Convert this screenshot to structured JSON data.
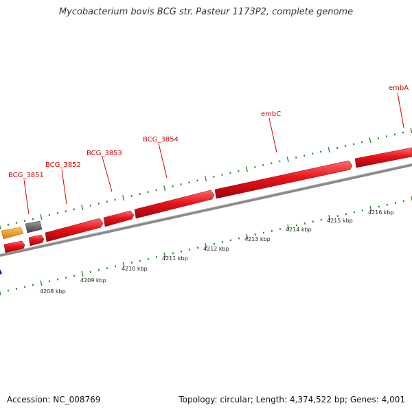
{
  "title": "Mycobacterium bovis BCG str. Pasteur 1173P2, complete genome",
  "footer": {
    "accession": "Accession: NC_008769",
    "summary": "Topology: circular; Length: 4,374,522 bp; Genes: 4,001"
  },
  "colors": {
    "gene": "#e8141a",
    "gene_alt_orange": "#f39a1d",
    "gene_alt_gray": "#666666",
    "backbone": "#8a8a8a",
    "tick": "#2e8b2e",
    "label": "#d40000",
    "marker_blue": "#1a1aa8"
  },
  "scale_labels": [
    "4208 kbp",
    "4209 kbp",
    "4210 kbp",
    "4211 kbp",
    "4212 kbp",
    "4213 kbp",
    "4214 kbp",
    "4215 kbp",
    "4216 kbp"
  ],
  "gene_labels": [
    "BCG_3851",
    "BCG_3852",
    "BCG_3853",
    "BCG_3854",
    "embC",
    "embA"
  ]
}
